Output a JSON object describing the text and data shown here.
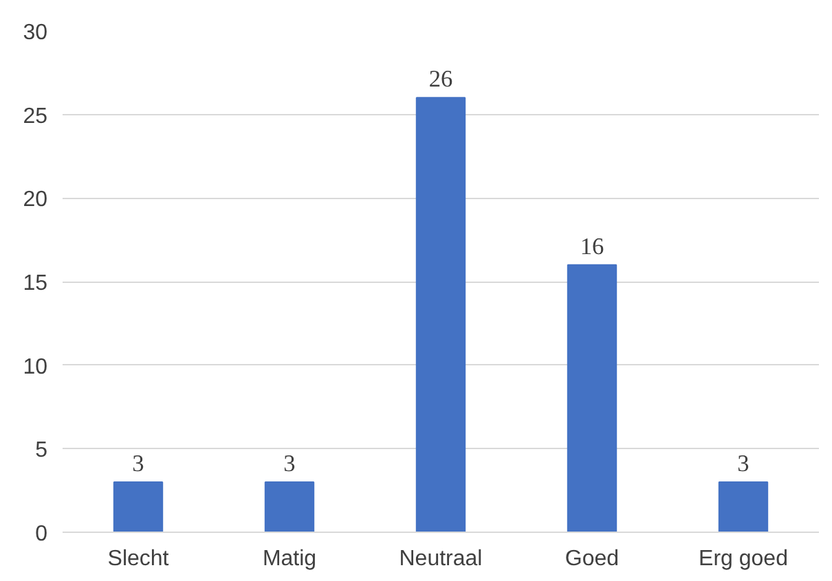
{
  "chart_data": {
    "type": "bar",
    "categories": [
      "Slecht",
      "Matig",
      "Neutraal",
      "Goed",
      "Erg goed"
    ],
    "values": [
      3,
      3,
      26,
      16,
      3
    ],
    "color": "#4472c4",
    "ylim": [
      0,
      30
    ],
    "yticks": [
      0,
      5,
      10,
      15,
      20,
      25,
      30
    ],
    "grid": "y",
    "data_labels": true
  }
}
